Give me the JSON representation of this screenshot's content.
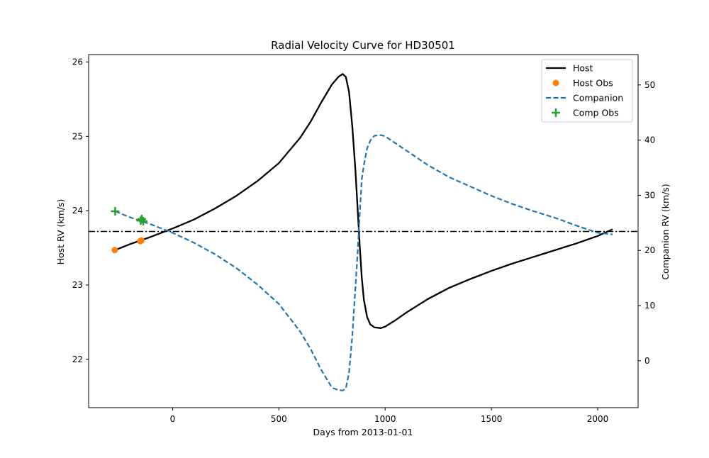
{
  "chart_data": {
    "type": "line",
    "title": "Radial Velocity Curve for HD30501",
    "xlabel": "Days from 2013-01-01",
    "ylabel": "Host RV (km/s)",
    "y2label": "Companion RV (km/s)",
    "xlim": [
      -395,
      2190
    ],
    "ylim": [
      21.35,
      26.1
    ],
    "y2lim": [
      -8.5,
      55.5
    ],
    "x_ticks": [
      0,
      500,
      1000,
      1500,
      2000
    ],
    "y_ticks": [
      22,
      23,
      24,
      25,
      26
    ],
    "y2_ticks": [
      0,
      10,
      20,
      30,
      40,
      50
    ],
    "legend_position": "upper right",
    "reference_line": {
      "axis": "host",
      "value": 23.72,
      "style": "dash-dot",
      "color": "#000000"
    },
    "series": [
      {
        "name": "Host",
        "kind": "line",
        "axis": "host",
        "color": "#000000",
        "style": "solid",
        "x": [
          -270,
          -200,
          -100,
          0,
          100,
          200,
          300,
          400,
          500,
          600,
          650,
          700,
          750,
          780,
          800,
          815,
          830,
          845,
          860,
          870,
          880,
          890,
          900,
          915,
          930,
          950,
          980,
          1000,
          1050,
          1100,
          1200,
          1300,
          1400,
          1500,
          1600,
          1700,
          1800,
          1900,
          2000,
          2070
        ],
        "y": [
          23.47,
          23.55,
          23.65,
          23.76,
          23.88,
          24.03,
          24.2,
          24.4,
          24.64,
          24.98,
          25.2,
          25.46,
          25.7,
          25.8,
          25.84,
          25.8,
          25.6,
          25.15,
          24.55,
          24.05,
          23.55,
          23.1,
          22.8,
          22.57,
          22.47,
          22.43,
          22.42,
          22.44,
          22.53,
          22.63,
          22.81,
          22.96,
          23.08,
          23.19,
          23.29,
          23.38,
          23.47,
          23.56,
          23.66,
          23.75
        ]
      },
      {
        "name": "Host Obs",
        "kind": "scatter",
        "axis": "host",
        "color": "#ff7f0e",
        "marker": "circle",
        "x": [
          -272,
          -152,
          -147
        ],
        "y": [
          23.47,
          23.59,
          23.6
        ]
      },
      {
        "name": "Companion",
        "kind": "line",
        "axis": "companion",
        "color": "#1f77b4",
        "style": "dashed",
        "x": [
          -270,
          -200,
          -100,
          0,
          100,
          200,
          300,
          400,
          500,
          600,
          650,
          700,
          750,
          780,
          800,
          815,
          830,
          845,
          860,
          870,
          880,
          890,
          900,
          915,
          930,
          950,
          980,
          1000,
          1050,
          1100,
          1200,
          1300,
          1400,
          1500,
          1600,
          1700,
          1800,
          1900,
          2000,
          2070
        ],
        "y": [
          27.1,
          26.0,
          24.7,
          23.2,
          21.4,
          19.3,
          16.8,
          13.8,
          10.3,
          5.3,
          2.1,
          -1.7,
          -4.9,
          -5.3,
          -5.4,
          -5.0,
          -2.2,
          4.3,
          13.2,
          19.2,
          26.4,
          32.9,
          35.5,
          38.5,
          39.9,
          40.8,
          40.9,
          40.7,
          39.4,
          38.1,
          35.5,
          33.3,
          31.6,
          29.9,
          28.4,
          27.1,
          25.9,
          24.5,
          23.2,
          22.9
        ]
      },
      {
        "name": "Comp Obs",
        "kind": "scatter",
        "axis": "companion",
        "color": "#2ca02c",
        "marker": "plus",
        "x": [
          -270,
          -150,
          -145,
          -138
        ],
        "y": [
          27.1,
          25.4,
          25.7,
          25.3
        ]
      }
    ]
  }
}
